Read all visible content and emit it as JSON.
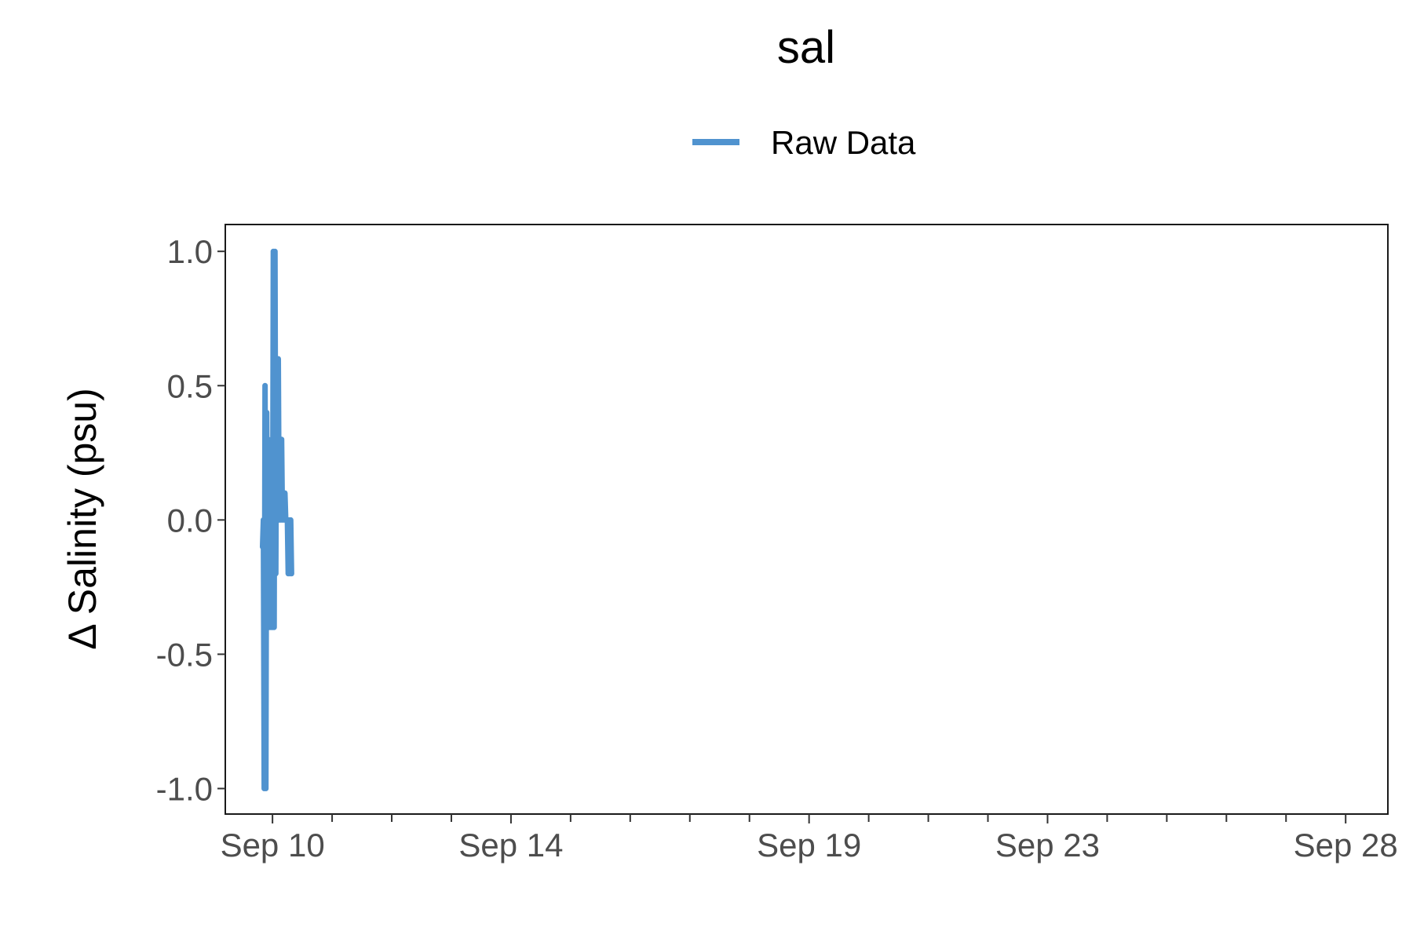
{
  "chart_data": {
    "type": "line",
    "title": "sal",
    "xlabel": "",
    "ylabel": "Δ Salinity (psu)",
    "legend_position": "top",
    "grid": false,
    "ylim": [
      -1.095,
      1.1
    ],
    "xlim": [
      "2023-09-09T05:00",
      "2023-09-28T17:00"
    ],
    "y_ticks": [
      -1.0,
      -0.5,
      0.0,
      0.5,
      1.0
    ],
    "y_tick_labels": [
      "-1.0",
      "-0.5",
      "0.0",
      "0.5",
      "1.0"
    ],
    "x_major_ticks": [
      "2023-09-10",
      "2023-09-14",
      "2023-09-19",
      "2023-09-23",
      "2023-09-28"
    ],
    "x_tick_labels": [
      "Sep 10",
      "Sep 14",
      "Sep 19",
      "Sep 23",
      "Sep 28"
    ],
    "x_minor_ticks": [
      "2023-09-11",
      "2023-09-12",
      "2023-09-13",
      "2023-09-15",
      "2023-09-16",
      "2023-09-17",
      "2023-09-18",
      "2023-09-20",
      "2023-09-21",
      "2023-09-22",
      "2023-09-24",
      "2023-09-25",
      "2023-09-26",
      "2023-09-27"
    ],
    "series": [
      {
        "name": "Raw Data",
        "color": "#5093cf",
        "x": [
          "2023-09-09T20:00",
          "2023-09-09T20:20",
          "2023-09-09T20:40",
          "2023-09-09T21:00",
          "2023-09-09T21:20",
          "2023-09-09T21:40",
          "2023-09-09T22:00",
          "2023-09-09T22:20",
          "2023-09-09T22:40",
          "2023-09-09T23:00",
          "2023-09-09T23:20",
          "2023-09-09T23:40",
          "2023-09-10T00:00",
          "2023-09-10T00:20",
          "2023-09-10T00:40",
          "2023-09-10T01:00",
          "2023-09-10T01:20",
          "2023-09-10T01:40",
          "2023-09-10T02:00",
          "2023-09-10T02:20",
          "2023-09-10T02:40",
          "2023-09-10T03:00",
          "2023-09-10T03:20",
          "2023-09-10T03:40",
          "2023-09-10T04:00",
          "2023-09-10T04:20",
          "2023-09-10T04:40",
          "2023-09-10T05:00",
          "2023-09-10T05:20",
          "2023-09-10T05:40",
          "2023-09-10T06:00",
          "2023-09-10T06:20",
          "2023-09-10T06:40",
          "2023-09-10T07:00",
          "2023-09-10T07:20",
          "2023-09-10T07:40"
        ],
        "y": [
          -0.1,
          0.0,
          -1.0,
          0.5,
          -1.0,
          0.4,
          -0.4,
          0.3,
          -0.4,
          0.2,
          -0.4,
          0.1,
          -0.4,
          1.0,
          -0.4,
          1.0,
          -0.2,
          0.6,
          0.0,
          0.6,
          0.0,
          0.3,
          0.0,
          0.3,
          0.0,
          0.1,
          0.0,
          0.1,
          0.0,
          0.0,
          0.0,
          -0.2,
          0.0,
          -0.2,
          0.0,
          -0.2
        ]
      }
    ]
  }
}
